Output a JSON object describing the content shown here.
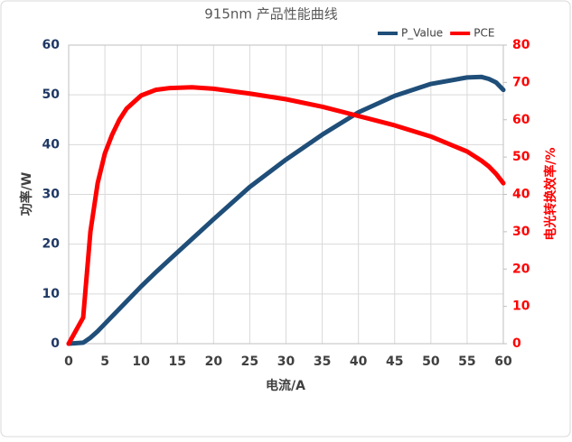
{
  "chart_data": {
    "type": "line",
    "title": "915nm 产品性能曲线",
    "x_label": "电流/A",
    "y_label": "功率/W",
    "y2_label": "电光转换效率/%",
    "x": [
      0,
      2,
      3,
      4,
      5,
      6,
      7,
      8,
      10,
      12,
      14,
      17,
      20,
      25,
      30,
      35,
      40,
      45,
      50,
      55,
      57,
      58,
      59,
      60
    ],
    "series": [
      {
        "name": "P_Value",
        "color": "#1f4e79",
        "axis": "y",
        "values": [
          0,
          0.2,
          1.2,
          2.5,
          4,
          5.5,
          7,
          8.5,
          11.5,
          14.3,
          17,
          21,
          25,
          31.5,
          37,
          42,
          46.5,
          49.8,
          52.2,
          53.5,
          53.6,
          53.2,
          52.5,
          51
        ]
      },
      {
        "name": "PCE",
        "color": "#ff0000",
        "axis": "y2",
        "values": [
          0,
          7,
          30,
          43,
          51,
          56,
          60,
          63,
          66.5,
          68,
          68.5,
          68.7,
          68.3,
          67,
          65.5,
          63.5,
          61,
          58.5,
          55.5,
          51.5,
          49,
          47.5,
          45.5,
          43
        ]
      }
    ],
    "xlim": [
      0,
      60
    ],
    "xticks": [
      0,
      5,
      10,
      15,
      20,
      25,
      30,
      35,
      40,
      45,
      50,
      55,
      60
    ],
    "ylim": [
      0,
      60
    ],
    "yticks": [
      0,
      10,
      20,
      30,
      40,
      50,
      60
    ],
    "y2lim": [
      0,
      80
    ],
    "y2ticks": [
      0,
      10,
      20,
      30,
      40,
      50,
      60,
      70,
      80
    ],
    "grid": true,
    "legend": "top-right"
  }
}
